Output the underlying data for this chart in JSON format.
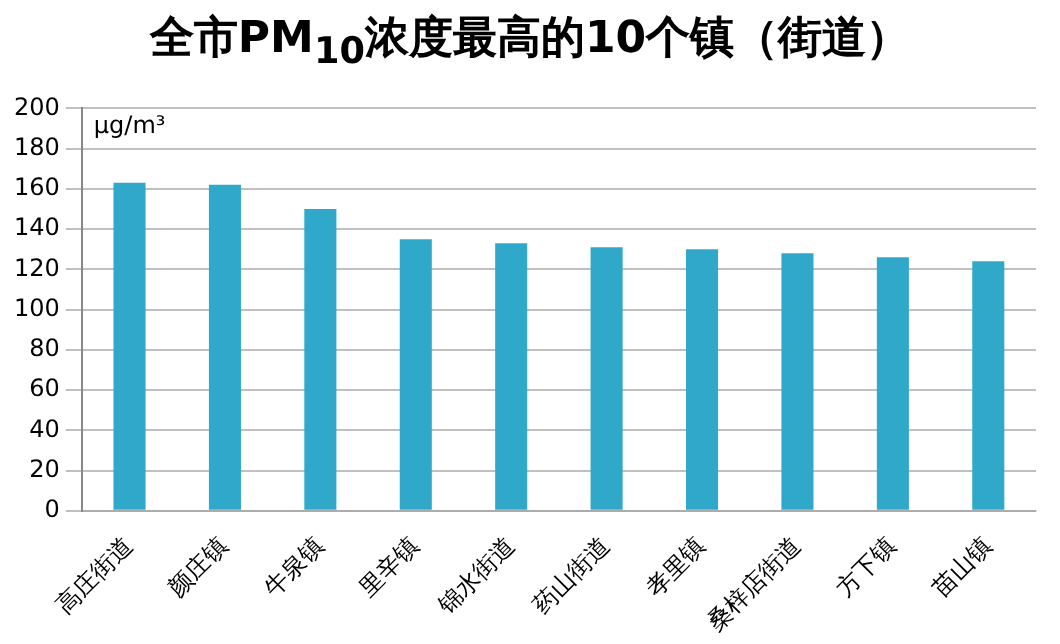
{
  "chart_data": {
    "type": "bar",
    "title": "全市PM$_{10}$浓度最高的10个镇（街道）",
    "ylabel": "μg/m³",
    "categories": [
      "高庄街道",
      "颜庄镇",
      "牛泉镇",
      "里辛镇",
      "锦水街道",
      "药山街道",
      "孝里镇",
      "桑梓店街道",
      "方下镇",
      "苗山镇"
    ],
    "values": [
      163,
      162,
      150,
      135,
      133,
      131,
      130,
      128,
      126,
      124
    ],
    "color": "#2fa8c9",
    "ylim": [
      0,
      200
    ],
    "yticks": [
      0,
      20,
      40,
      60,
      80,
      100,
      120,
      140,
      160,
      180,
      200
    ],
    "grid": "y"
  }
}
